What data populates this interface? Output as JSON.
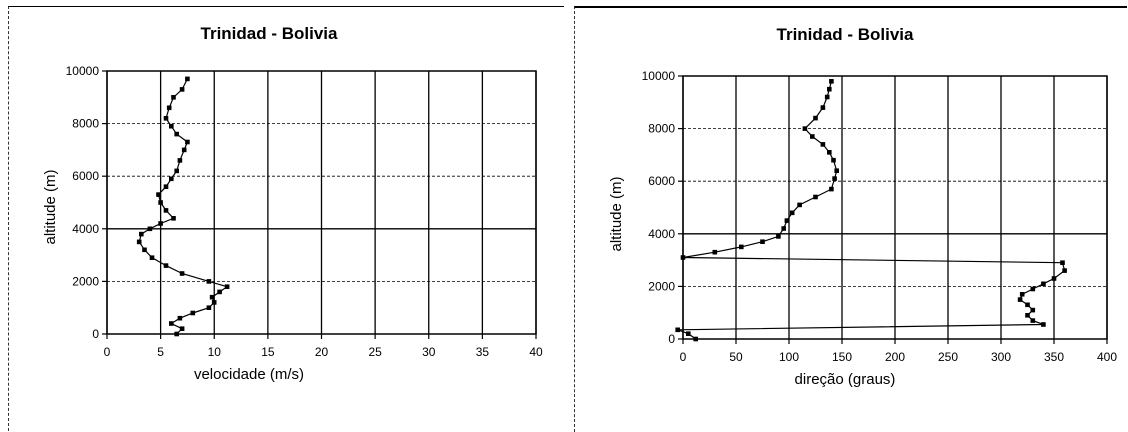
{
  "chart_data": [
    {
      "type": "line",
      "title": "Trinidad - Bolivia",
      "xlabel": "velocidade (m/s)",
      "ylabel": "altitude (m)",
      "xlim": [
        0,
        40
      ],
      "ylim": [
        0,
        10000
      ],
      "x_ticks": [
        "0",
        "5",
        "10",
        "15",
        "20",
        "25",
        "30",
        "35",
        "40"
      ],
      "y_ticks": [
        "0",
        "2000",
        "4000",
        "6000",
        "8000",
        "10000"
      ],
      "grid": true,
      "series": [
        {
          "points": [
            [
              6.5,
              0
            ],
            [
              7.0,
              200
            ],
            [
              6.0,
              400
            ],
            [
              6.8,
              600
            ],
            [
              8.0,
              800
            ],
            [
              9.5,
              1000
            ],
            [
              10.0,
              1200
            ],
            [
              9.8,
              1400
            ],
            [
              10.5,
              1600
            ],
            [
              11.2,
              1800
            ],
            [
              9.5,
              2000
            ],
            [
              7.0,
              2300
            ],
            [
              5.5,
              2600
            ],
            [
              4.2,
              2900
            ],
            [
              3.5,
              3200
            ],
            [
              3.0,
              3500
            ],
            [
              3.2,
              3800
            ],
            [
              4.0,
              4000
            ],
            [
              5.0,
              4200
            ],
            [
              6.2,
              4400
            ],
            [
              5.5,
              4700
            ],
            [
              5.0,
              5000
            ],
            [
              4.8,
              5300
            ],
            [
              5.5,
              5600
            ],
            [
              6.0,
              5900
            ],
            [
              6.5,
              6200
            ],
            [
              6.8,
              6600
            ],
            [
              7.2,
              7000
            ],
            [
              7.5,
              7300
            ],
            [
              6.5,
              7600
            ],
            [
              6.0,
              7900
            ],
            [
              5.5,
              8200
            ],
            [
              5.8,
              8600
            ],
            [
              6.2,
              9000
            ],
            [
              7.0,
              9300
            ],
            [
              7.5,
              9700
            ]
          ]
        }
      ]
    },
    {
      "type": "line",
      "title": "Trinidad - Bolivia",
      "xlabel": "direção (graus)",
      "ylabel": "altitude (m)",
      "xlim": [
        0,
        400
      ],
      "ylim": [
        0,
        10000
      ],
      "x_ticks": [
        "0",
        "50",
        "100",
        "150",
        "200",
        "250",
        "300",
        "350",
        "400"
      ],
      "y_ticks": [
        "0",
        "2000",
        "4000",
        "6000",
        "8000",
        "10000"
      ],
      "grid": true,
      "series": [
        {
          "points": [
            [
              12,
              0
            ],
            [
              5,
              200
            ],
            [
              -5,
              350
            ],
            [
              340,
              550
            ],
            [
              330,
              700
            ],
            [
              325,
              900
            ],
            [
              330,
              1100
            ],
            [
              325,
              1300
            ],
            [
              318,
              1500
            ],
            [
              320,
              1700
            ],
            [
              330,
              1900
            ],
            [
              340,
              2100
            ],
            [
              350,
              2300
            ],
            [
              360,
              2600
            ],
            [
              358,
              2900
            ],
            [
              0,
              3100
            ],
            [
              30,
              3300
            ],
            [
              55,
              3500
            ],
            [
              75,
              3700
            ],
            [
              90,
              3900
            ],
            [
              95,
              4200
            ],
            [
              98,
              4500
            ],
            [
              103,
              4800
            ],
            [
              110,
              5100
            ],
            [
              125,
              5400
            ],
            [
              140,
              5700
            ],
            [
              143,
              6100
            ],
            [
              145,
              6400
            ],
            [
              142,
              6800
            ],
            [
              138,
              7100
            ],
            [
              132,
              7400
            ],
            [
              122,
              7700
            ],
            [
              115,
              8000
            ],
            [
              125,
              8400
            ],
            [
              132,
              8800
            ],
            [
              136,
              9200
            ],
            [
              138,
              9500
            ],
            [
              140,
              9800
            ]
          ]
        }
      ]
    }
  ]
}
